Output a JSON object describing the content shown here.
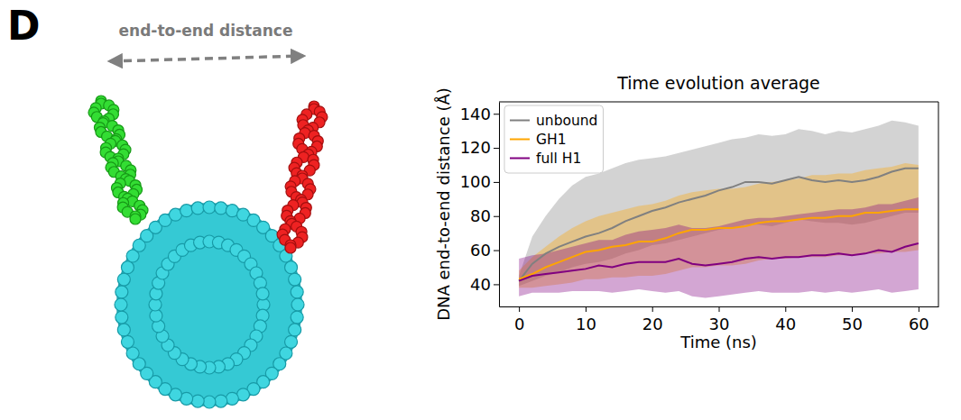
{
  "panel": "D",
  "illustration": {
    "label": "end-to-end distance"
  },
  "chart_data": {
    "type": "line",
    "title": "Time evolution average",
    "x_label": "Time (ns)",
    "y_label": "DNA end-to-end distance (Å)",
    "x": [
      0,
      2,
      4,
      6,
      8,
      10,
      12,
      14,
      16,
      18,
      20,
      22,
      24,
      26,
      28,
      30,
      32,
      34,
      36,
      38,
      40,
      42,
      44,
      46,
      48,
      50,
      52,
      54,
      56,
      58,
      60
    ],
    "xlim": [
      -3,
      63
    ],
    "ylim": [
      27,
      147
    ],
    "xticks": [
      0,
      10,
      20,
      30,
      40,
      50,
      60
    ],
    "yticks": [
      40,
      60,
      80,
      100,
      120,
      140
    ],
    "grid": false,
    "legend": "upper left",
    "series": [
      {
        "name": "unbound",
        "color": "#808080",
        "values": [
          42,
          52,
          58,
          62,
          65,
          68,
          70,
          73,
          77,
          80,
          83,
          85,
          88,
          90,
          92,
          95,
          97,
          100,
          100,
          99,
          101,
          103,
          101,
          100,
          101,
          100,
          101,
          103,
          106,
          108,
          108
        ],
        "lower": [
          39,
          42,
          45,
          47,
          50,
          52,
          53,
          55,
          58,
          60,
          63,
          64,
          66,
          68,
          70,
          72,
          73,
          75,
          75,
          74,
          76,
          78,
          77,
          76,
          76,
          75,
          76,
          78,
          80,
          82,
          82
        ],
        "upper": [
          45,
          68,
          80,
          90,
          98,
          103,
          105,
          108,
          111,
          113,
          114,
          115,
          117,
          119,
          121,
          123,
          125,
          126,
          128,
          127,
          128,
          131,
          130,
          128,
          130,
          129,
          131,
          133,
          136,
          135,
          133
        ]
      },
      {
        "name": "GH1",
        "color": "#ffa500",
        "values": [
          43,
          46,
          50,
          53,
          56,
          59,
          60,
          62,
          63,
          65,
          65,
          67,
          70,
          72,
          72,
          73,
          73,
          74,
          76,
          77,
          77,
          78,
          79,
          79,
          80,
          80,
          82,
          82,
          83,
          84,
          84
        ],
        "lower": [
          38,
          38,
          39,
          40,
          41,
          43,
          43,
          44,
          44,
          45,
          45,
          46,
          48,
          50,
          50,
          51,
          51,
          52,
          54,
          55,
          55,
          56,
          56,
          56,
          57,
          57,
          58,
          58,
          59,
          59,
          60
        ],
        "upper": [
          48,
          56,
          62,
          68,
          73,
          77,
          80,
          82,
          84,
          86,
          87,
          89,
          92,
          94,
          95,
          96,
          96,
          97,
          99,
          100,
          101,
          102,
          104,
          104,
          105,
          105,
          107,
          108,
          109,
          111,
          110
        ]
      },
      {
        "name": "full H1",
        "color": "#800080",
        "values": [
          42,
          45,
          46,
          47,
          48,
          49,
          51,
          50,
          52,
          53,
          53,
          53,
          55,
          52,
          51,
          52,
          53,
          55,
          56,
          55,
          56,
          56,
          57,
          57,
          58,
          57,
          58,
          60,
          59,
          62,
          64
        ],
        "lower": [
          33,
          35,
          35,
          35,
          36,
          36,
          36,
          35,
          36,
          37,
          36,
          35,
          36,
          33,
          32,
          33,
          34,
          35,
          36,
          35,
          35,
          35,
          36,
          35,
          36,
          35,
          36,
          37,
          35,
          36,
          37
        ],
        "upper": [
          55,
          57,
          58,
          60,
          62,
          64,
          66,
          66,
          69,
          71,
          72,
          73,
          75,
          73,
          73,
          74,
          76,
          78,
          79,
          79,
          80,
          81,
          82,
          83,
          84,
          84,
          85,
          87,
          87,
          89,
          91
        ]
      }
    ]
  }
}
